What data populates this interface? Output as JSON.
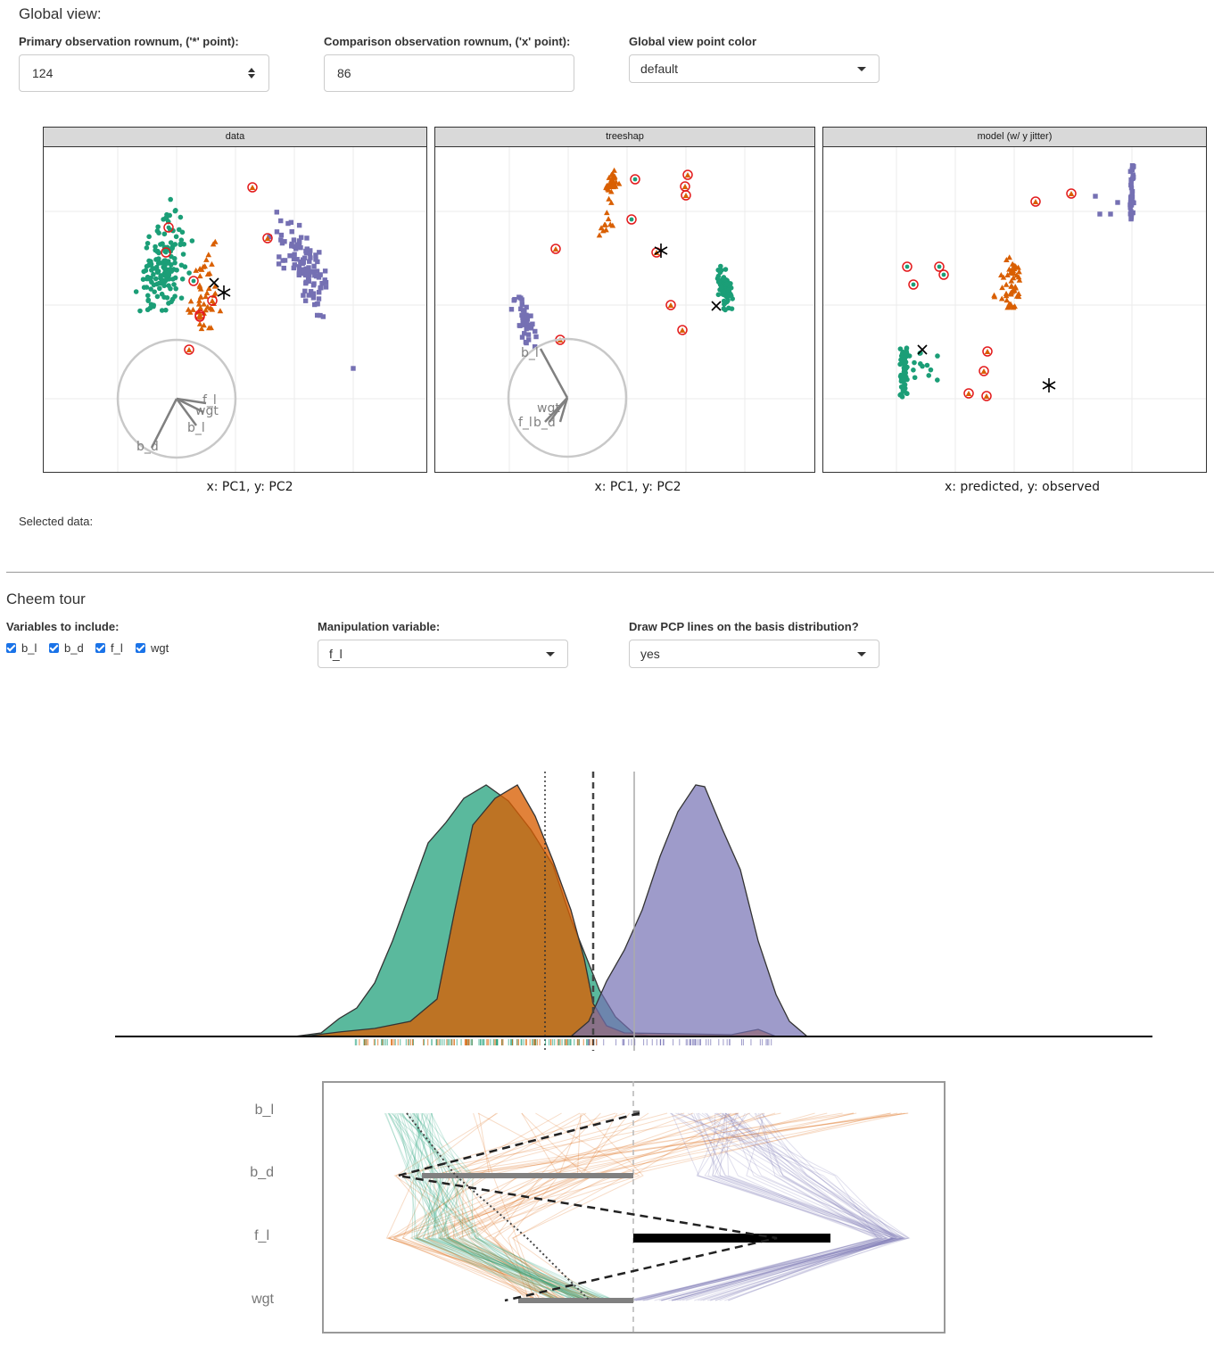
{
  "global": {
    "title": "Global view:",
    "primary_label": "Primary observation rownum, ('*' point):",
    "primary_value": "124",
    "comparison_label": "Comparison observation rownum, ('x' point):",
    "comparison_value": "86",
    "color_label": "Global view point color",
    "color_value": "default",
    "panels": [
      {
        "strip": "data",
        "caption": "x: PC1, y: PC2"
      },
      {
        "strip": "treeshap",
        "caption": "x: PC1, y: PC2"
      },
      {
        "strip": "model (w/ y jitter)",
        "caption": "x: predicted, y: observed"
      }
    ],
    "axis_labels": {
      "b_l": "b_l",
      "b_d": "b_d",
      "f_l": "f_l",
      "wgt": "wgt"
    },
    "selected_label": "Selected data:"
  },
  "tour": {
    "title": "Cheem tour",
    "vars_label": "Variables to include:",
    "vars": [
      {
        "label": "b_l",
        "checked": true
      },
      {
        "label": "b_d",
        "checked": true
      },
      {
        "label": "f_l",
        "checked": true
      },
      {
        "label": "wgt",
        "checked": true
      }
    ],
    "manip_label": "Manipulation variable:",
    "manip_value": "f_l",
    "pcp_label": "Draw PCP lines on the basis distribution?",
    "pcp_value": "yes",
    "pcp_vars": [
      "b_l",
      "b_d",
      "f_l",
      "wgt"
    ]
  },
  "colors": {
    "green": "#1b9e77",
    "orange": "#d95f02",
    "purple": "#7570b3",
    "misclass": "#e31a1c",
    "strip": "#d9d9d9"
  }
}
